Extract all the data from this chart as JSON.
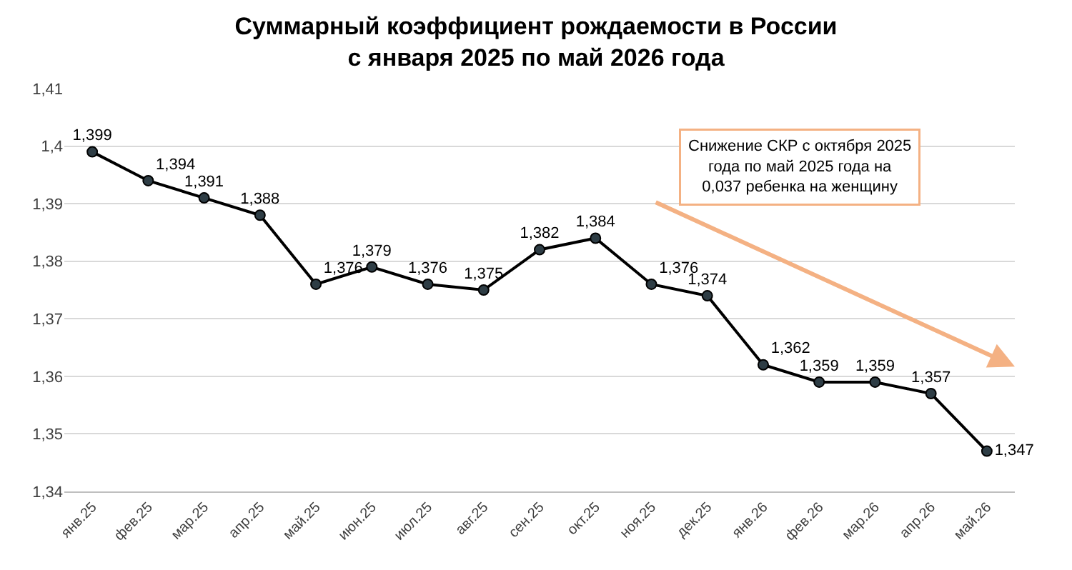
{
  "chart_data": {
    "type": "line",
    "title": "Суммарный коэффициент рождаемости в России\nс января 2025 по май 2026 года",
    "categories": [
      "янв.25",
      "фев.25",
      "мар.25",
      "апр.25",
      "май.25",
      "июн.25",
      "июл.25",
      "авг.25",
      "сен.25",
      "окт.25",
      "ноя.25",
      "дек.25",
      "янв.26",
      "фев.26",
      "мар.26",
      "апр.26",
      "май.26"
    ],
    "series": [
      {
        "color": "#000000",
        "values": [
          1.399,
          1.394,
          1.391,
          1.388,
          1.376,
          1.379,
          1.376,
          1.375,
          1.382,
          1.384,
          1.376,
          1.374,
          1.362,
          1.359,
          1.359,
          1.357,
          1.347
        ],
        "value_labels": [
          "1,399",
          "1,394",
          "1,391",
          "1,388",
          "1,376",
          "1,379",
          "1,376",
          "1,375",
          "1,382",
          "1,384",
          "1,376",
          "1,374",
          "1,362",
          "1,359",
          "1,359",
          "1,357",
          "1,347"
        ]
      }
    ],
    "ylim": [
      1.34,
      1.41
    ],
    "yticks": [
      {
        "value": 1.34,
        "label": "1,34"
      },
      {
        "value": 1.35,
        "label": "1,35"
      },
      {
        "value": 1.36,
        "label": "1,36"
      },
      {
        "value": 1.37,
        "label": "1,37"
      },
      {
        "value": 1.38,
        "label": "1,38"
      },
      {
        "value": 1.39,
        "label": "1,39"
      },
      {
        "value": 1.4,
        "label": "1,4"
      },
      {
        "value": 1.41,
        "label": "1,41"
      }
    ],
    "grid": "y",
    "marker": "circle",
    "line_style": "solid",
    "legend": false,
    "annotations": [
      "Снижение СКР с октября 2025\nгода по май 2025 года на\n0,037 ребенка на женщину"
    ]
  }
}
